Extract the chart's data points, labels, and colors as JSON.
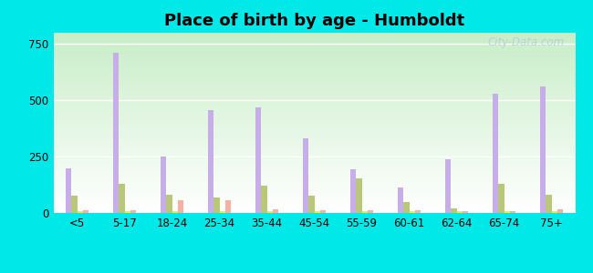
{
  "title": "Place of birth by age - Humboldt",
  "categories": [
    "<5",
    "5-17",
    "18-24",
    "25-34",
    "35-44",
    "45-54",
    "55-59",
    "60-61",
    "62-64",
    "65-74",
    "75+"
  ],
  "series": {
    "Born in state of residence": [
      200,
      710,
      250,
      455,
      470,
      330,
      195,
      115,
      240,
      530,
      560
    ],
    "Born in other state": [
      75,
      130,
      80,
      70,
      120,
      75,
      155,
      50,
      20,
      130,
      80
    ],
    "Native, outside of US": [
      8,
      8,
      8,
      8,
      8,
      8,
      8,
      8,
      8,
      8,
      8
    ],
    "Foreign-born": [
      12,
      12,
      55,
      55,
      15,
      12,
      12,
      12,
      8,
      8,
      15
    ]
  },
  "colors": {
    "Born in state of residence": "#c8aee8",
    "Born in other state": "#b8c878",
    "Native, outside of US": "#f5e84a",
    "Foreign-born": "#f5b0a0"
  },
  "ylim": [
    0,
    800
  ],
  "yticks": [
    0,
    250,
    500,
    750
  ],
  "cyan_bg": "#00e8e8",
  "plot_bg_top": "#ffffff",
  "plot_bg_bottom": "#c8eec8",
  "grid_color": "#ffffff",
  "legend_fontsize": 8.5,
  "title_fontsize": 13,
  "bar_width": 0.12,
  "figsize": [
    6.5,
    3.0
  ],
  "dpi": 100
}
